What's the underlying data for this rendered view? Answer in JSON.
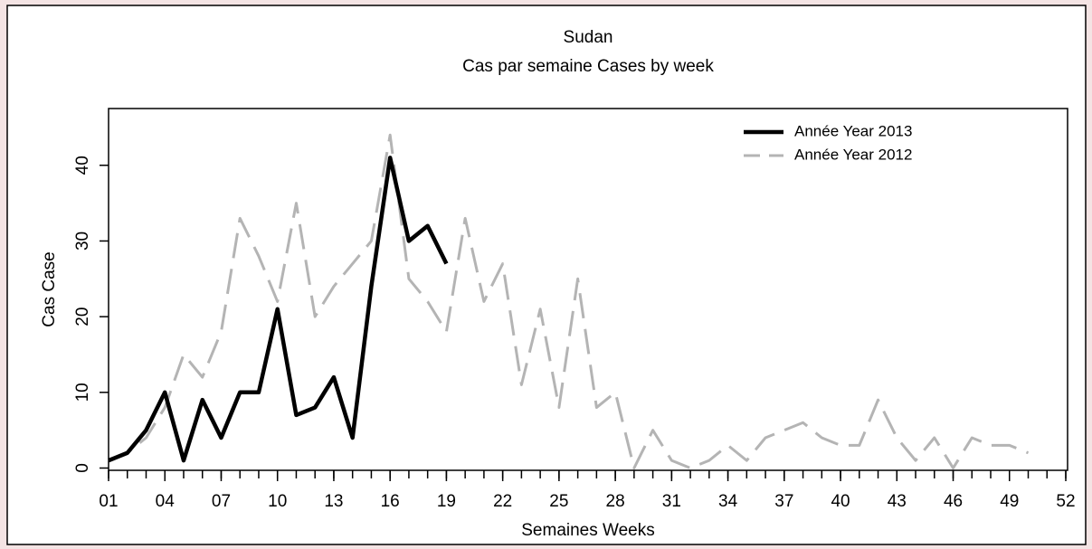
{
  "chart_data": {
    "type": "line",
    "title": "Sudan",
    "subtitle": "Cas par semaine Cases by week",
    "x_label": "Semaines Weeks",
    "y_label": "Cas Case",
    "xlim": [
      1,
      52
    ],
    "ylim": [
      -0.3,
      47.5
    ],
    "xticks": [
      {
        "value": 1,
        "label": "01"
      },
      {
        "value": 4,
        "label": "04"
      },
      {
        "value": 7,
        "label": "07"
      },
      10,
      13,
      16,
      19,
      22,
      25,
      28,
      31,
      34,
      37,
      40,
      43,
      46,
      49,
      52
    ],
    "xminor_ticks": [
      1,
      2,
      3,
      4,
      5,
      6,
      7,
      8,
      9,
      10,
      11,
      12,
      13,
      14,
      15,
      16,
      17,
      18,
      19,
      20,
      21,
      22,
      23,
      24,
      25,
      26,
      27,
      28,
      29,
      30,
      31,
      32,
      33,
      34,
      35,
      36,
      37,
      38,
      39,
      40,
      41,
      42,
      43,
      44,
      45,
      46,
      47,
      48,
      49,
      50,
      51,
      52
    ],
    "yticks": [
      0,
      10,
      20,
      30,
      40
    ],
    "legend": "top-right",
    "series": [
      {
        "name": "Année Year 2013",
        "color": "#000000",
        "dash": "solid",
        "x": [
          1,
          2,
          3,
          4,
          5,
          6,
          7,
          8,
          9,
          10,
          11,
          12,
          13,
          14,
          15,
          16,
          17,
          18,
          19
        ],
        "values": [
          1,
          2,
          5,
          10,
          1,
          9,
          4,
          10,
          10,
          21,
          7,
          8,
          12,
          4,
          24,
          41,
          30,
          32,
          27
        ]
      },
      {
        "name": "Année Year 2012",
        "color": "#b4b4b4",
        "dash": "dashed",
        "x": [
          1,
          2,
          3,
          4,
          5,
          6,
          7,
          8,
          9,
          10,
          11,
          12,
          13,
          14,
          15,
          16,
          17,
          18,
          19,
          20,
          21,
          22,
          23,
          24,
          25,
          26,
          27,
          28,
          29,
          30,
          31,
          32,
          33,
          34,
          35,
          36,
          37,
          38,
          39,
          40,
          41,
          42,
          43,
          44,
          45,
          46,
          47,
          48,
          49,
          50
        ],
        "values": [
          1,
          2,
          4,
          8,
          15,
          12,
          18,
          33,
          28,
          22,
          35,
          20,
          24,
          27,
          30,
          44,
          25,
          22,
          18,
          33,
          22,
          27,
          11,
          21,
          8,
          25,
          8,
          10,
          0,
          5,
          1,
          0,
          1,
          3,
          1,
          4,
          5,
          6,
          4,
          3,
          3,
          9,
          4,
          1,
          4,
          0,
          4,
          3,
          3,
          2
        ]
      }
    ]
  }
}
